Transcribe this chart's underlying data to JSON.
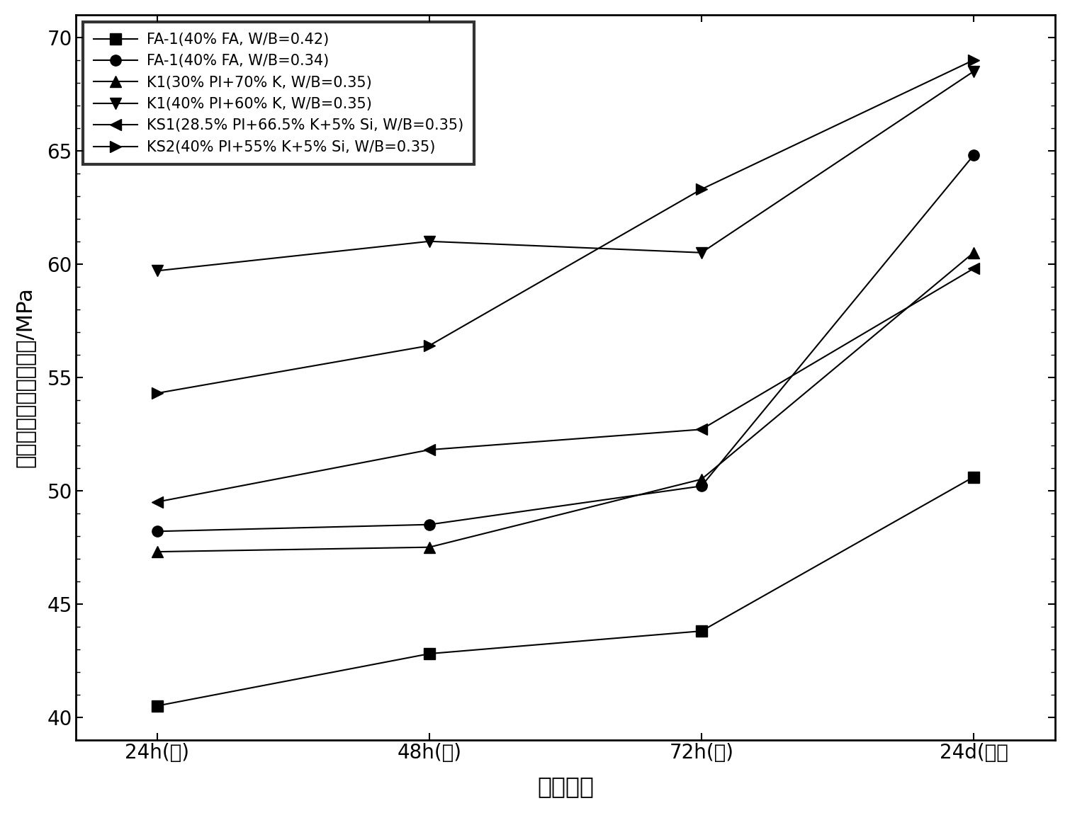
{
  "x_labels": [
    "24h(热)",
    "48h(热)",
    "72h(热)",
    "24d(标）"
  ],
  "x_values": [
    0,
    1,
    2,
    3
  ],
  "series": [
    {
      "label": "FA-1(40% FA, W/B=0.42)",
      "values": [
        40.5,
        42.8,
        43.8,
        50.6
      ],
      "marker": "s",
      "color": "#000000",
      "markersize": 11
    },
    {
      "label": "FA-1(40% FA, W/B=0.34)",
      "values": [
        48.2,
        48.5,
        50.2,
        64.8
      ],
      "marker": "o",
      "color": "#000000",
      "markersize": 11
    },
    {
      "label": "K1(30% PI+70% K, W/B=0.35)",
      "values": [
        47.3,
        47.5,
        50.5,
        60.5
      ],
      "marker": "^",
      "color": "#000000",
      "markersize": 11
    },
    {
      "label": "K1(40% PI+60% K, W/B=0.35)",
      "values": [
        59.7,
        61.0,
        60.5,
        68.5
      ],
      "marker": "v",
      "color": "#000000",
      "markersize": 11
    },
    {
      "label": "KS1(28.5% PI+66.5% K+5% Si, W/B=0.35)",
      "values": [
        49.5,
        51.8,
        52.7,
        59.8
      ],
      "marker": "<",
      "color": "#000000",
      "markersize": 11
    },
    {
      "label": "KS2(40% PI+55% K+5% Si, W/B=0.35)",
      "values": [
        54.3,
        56.4,
        63.3,
        69.0
      ],
      "marker": ">",
      "color": "#000000",
      "markersize": 11
    }
  ],
  "ylabel": "混凝土立方体抗压强度/MPa",
  "xlabel": "养护时间",
  "ylim": [
    39,
    71
  ],
  "yticks": [
    40,
    45,
    50,
    55,
    60,
    65,
    70
  ],
  "background_color": "#ffffff",
  "legend_loc": "upper left",
  "title": ""
}
